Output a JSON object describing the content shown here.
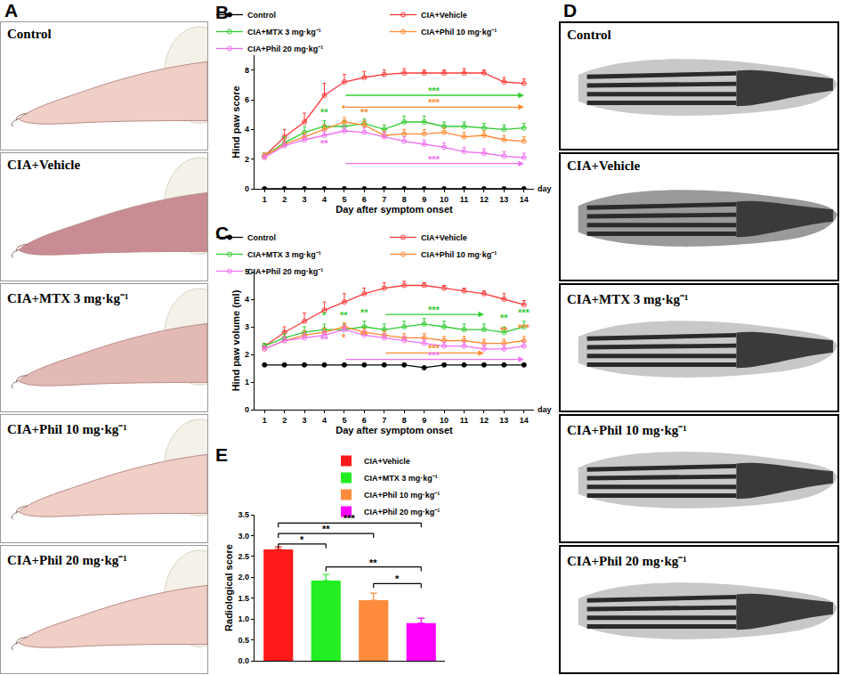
{
  "photo_panels": [
    {
      "panel": "A",
      "captions": [
        "Control",
        "CIA+Vehicle",
        "CIA+MTX 3 mg·kg⁻¹",
        "CIA+Phil 10 mg·kg⁻¹",
        "CIA+Phil 20 mg·kg⁻¹"
      ]
    },
    {
      "panel": "D",
      "captions": [
        "Control",
        "CIA+Vehicle",
        "CIA+MTX 3 mg·kg⁻¹",
        "CIA+Phil 10 mg·kg⁻¹",
        "CIA+Phil 20 mg·kg⁻¹"
      ]
    }
  ],
  "chart_data": [
    {
      "panel": "B",
      "type": "line",
      "xlabel": "Day after symptom onset",
      "axis_end_label": "day",
      "ylabel": "Hind paw score",
      "x": [
        1,
        2,
        3,
        4,
        5,
        6,
        7,
        8,
        9,
        10,
        11,
        12,
        13,
        14
      ],
      "xlim": [
        0.5,
        14.5
      ],
      "xticks": [
        1,
        2,
        3,
        4,
        5,
        6,
        7,
        8,
        9,
        10,
        11,
        12,
        13,
        14
      ],
      "ylim": [
        0,
        9
      ],
      "yticks": [
        0,
        2,
        4,
        6,
        8
      ],
      "grid": false,
      "legend": "top",
      "series": [
        {
          "name": "Control",
          "color": "#000000",
          "marker": "circle",
          "values": [
            0,
            0,
            0,
            0,
            0,
            0,
            0,
            0,
            0,
            0,
            0,
            0,
            0,
            0
          ]
        },
        {
          "name": "CIA+Vehicle",
          "color": "#ff3b3b",
          "marker": "circle-open",
          "values": [
            2.2,
            3.5,
            4.5,
            6.3,
            7.2,
            7.5,
            7.7,
            7.8,
            7.8,
            7.8,
            7.8,
            7.8,
            7.2,
            7.1
          ],
          "errors": [
            0.2,
            0.5,
            0.6,
            0.8,
            0.5,
            0.4,
            0.3,
            0.3,
            0.2,
            0.2,
            0.3,
            0.2,
            0.3,
            0.3
          ]
        },
        {
          "name": "CIA+MTX 3 mg·kg⁻¹",
          "color": "#33cc33",
          "marker": "circle-open",
          "values": [
            2.2,
            3.1,
            3.8,
            4.2,
            4.2,
            4.4,
            4.0,
            4.5,
            4.5,
            4.2,
            4.2,
            4.1,
            4.0,
            4.1
          ],
          "errors": [
            0.2,
            0.4,
            0.4,
            0.4,
            0.4,
            0.3,
            0.3,
            0.4,
            0.4,
            0.3,
            0.3,
            0.3,
            0.3,
            0.3
          ]
        },
        {
          "name": "CIA+Phil 10 mg·kg⁻¹",
          "color": "#ff8a33",
          "marker": "circle-open",
          "values": [
            2.2,
            3.0,
            3.5,
            4.0,
            4.5,
            4.3,
            3.6,
            3.7,
            3.7,
            3.8,
            3.5,
            3.6,
            3.3,
            3.2
          ],
          "errors": [
            0.2,
            0.3,
            0.3,
            0.3,
            0.3,
            0.3,
            0.3,
            0.3,
            0.3,
            0.3,
            0.3,
            0.3,
            0.3,
            0.3
          ]
        },
        {
          "name": "CIA+Phil 20 mg·kg⁻¹",
          "color": "#f070f0",
          "marker": "circle-open",
          "values": [
            2.1,
            2.9,
            3.3,
            3.6,
            3.9,
            3.8,
            3.5,
            3.2,
            3.0,
            2.8,
            2.5,
            2.4,
            2.2,
            2.1
          ],
          "errors": [
            0.2,
            0.3,
            0.3,
            0.3,
            0.3,
            0.3,
            0.3,
            0.3,
            0.3,
            0.3,
            0.3,
            0.3,
            0.3,
            0.3
          ]
        }
      ],
      "annotations": [
        {
          "x": 4,
          "y": 4.7,
          "text": "**",
          "color": "#33cc33"
        },
        {
          "x": 5,
          "y": 4.9,
          "text": "*",
          "color": "#ff8a33"
        },
        {
          "x": 6,
          "y": 4.7,
          "text": "**",
          "color": "#ff8a33"
        },
        {
          "x": 4,
          "y": 2.6,
          "text": "**",
          "color": "#f070f0"
        }
      ],
      "arrows": [
        {
          "from": 5,
          "to": 14,
          "y": 6.3,
          "text": "***",
          "color": "#33cc33"
        },
        {
          "from": 5,
          "to": 14,
          "y": 5.5,
          "text": "***",
          "color": "#ff8a33"
        },
        {
          "from": 5,
          "to": 14,
          "y": 1.7,
          "text": "***",
          "color": "#f070f0"
        }
      ]
    },
    {
      "panel": "C",
      "type": "line",
      "xlabel": "Day after symptom onset",
      "axis_end_label": "day",
      "ylabel": "Hind paw volume (ml)",
      "x": [
        1,
        2,
        3,
        4,
        5,
        6,
        7,
        8,
        9,
        10,
        11,
        12,
        13,
        14
      ],
      "xlim": [
        0.5,
        14.5
      ],
      "xticks": [
        1,
        2,
        3,
        4,
        5,
        6,
        7,
        8,
        9,
        10,
        11,
        12,
        13,
        14
      ],
      "ylim": [
        0,
        5
      ],
      "yticks": [
        0,
        1,
        2,
        3,
        4,
        5
      ],
      "grid": false,
      "legend": "top",
      "series": [
        {
          "name": "Control",
          "color": "#000000",
          "marker": "circle",
          "values": [
            1.62,
            1.62,
            1.62,
            1.62,
            1.62,
            1.62,
            1.62,
            1.62,
            1.52,
            1.62,
            1.62,
            1.62,
            1.62,
            1.62
          ],
          "errors": [
            0.03,
            0.03,
            0.03,
            0.03,
            0.03,
            0.03,
            0.03,
            0.03,
            0.03,
            0.03,
            0.03,
            0.03,
            0.03,
            0.03
          ]
        },
        {
          "name": "CIA+Vehicle",
          "color": "#ff3b3b",
          "marker": "circle-open",
          "values": [
            2.3,
            2.8,
            3.2,
            3.6,
            3.9,
            4.2,
            4.4,
            4.5,
            4.5,
            4.4,
            4.3,
            4.2,
            4.0,
            3.8
          ],
          "errors": [
            0.1,
            0.2,
            0.3,
            0.3,
            0.3,
            0.2,
            0.2,
            0.15,
            0.1,
            0.1,
            0.1,
            0.1,
            0.2,
            0.15
          ]
        },
        {
          "name": "CIA+MTX 3 mg·kg⁻¹",
          "color": "#33cc33",
          "marker": "circle-open",
          "values": [
            2.3,
            2.6,
            2.8,
            2.9,
            2.9,
            3.0,
            2.9,
            3.0,
            3.1,
            3.0,
            2.9,
            2.9,
            2.8,
            3.0
          ],
          "errors": [
            0.1,
            0.15,
            0.2,
            0.2,
            0.2,
            0.2,
            0.2,
            0.2,
            0.2,
            0.2,
            0.2,
            0.2,
            0.2,
            0.2
          ]
        },
        {
          "name": "CIA+Phil 10 mg·kg⁻¹",
          "color": "#ff8a33",
          "marker": "circle-open",
          "values": [
            2.2,
            2.5,
            2.7,
            2.8,
            3.0,
            2.8,
            2.7,
            2.6,
            2.6,
            2.5,
            2.5,
            2.4,
            2.4,
            2.5
          ],
          "errors": [
            0.1,
            0.15,
            0.15,
            0.15,
            0.15,
            0.15,
            0.15,
            0.15,
            0.15,
            0.15,
            0.15,
            0.15,
            0.15,
            0.15
          ]
        },
        {
          "name": "CIA+Phil 20 mg·kg⁻¹",
          "color": "#f070f0",
          "marker": "circle-open",
          "values": [
            2.2,
            2.5,
            2.6,
            2.7,
            2.9,
            2.7,
            2.6,
            2.5,
            2.4,
            2.3,
            2.3,
            2.2,
            2.2,
            2.3
          ],
          "errors": [
            0.1,
            0.15,
            0.15,
            0.15,
            0.15,
            0.15,
            0.15,
            0.15,
            0.15,
            0.15,
            0.15,
            0.15,
            0.15,
            0.15
          ]
        }
      ],
      "annotations": [
        {
          "x": 4,
          "y": 3.15,
          "text": "*",
          "color": "#33cc33"
        },
        {
          "x": 5,
          "y": 3.15,
          "text": "**",
          "color": "#33cc33"
        },
        {
          "x": 6,
          "y": 3.25,
          "text": "**",
          "color": "#33cc33"
        },
        {
          "x": 13,
          "y": 3.05,
          "text": "**",
          "color": "#33cc33"
        },
        {
          "x": 14,
          "y": 3.25,
          "text": "***",
          "color": "#33cc33"
        },
        {
          "x": 5,
          "y": 2.35,
          "text": "*",
          "color": "#ff8a33"
        },
        {
          "x": 6,
          "y": 2.45,
          "text": "**",
          "color": "#ff8a33"
        },
        {
          "x": 13,
          "y": 2.6,
          "text": "**",
          "color": "#ff8a33"
        },
        {
          "x": 14,
          "y": 2.7,
          "text": "***",
          "color": "#ff8a33"
        },
        {
          "x": 4,
          "y": 2.3,
          "text": "**",
          "color": "#f070f0"
        }
      ],
      "arrows": [
        {
          "from": 7,
          "to": 12,
          "y": 3.45,
          "text": "***",
          "color": "#33cc33"
        },
        {
          "from": 7,
          "to": 12,
          "y": 2.05,
          "text": "***",
          "color": "#ff8a33"
        },
        {
          "from": 5,
          "to": 14,
          "y": 1.82,
          "text": "***",
          "color": "#f070f0"
        }
      ]
    },
    {
      "panel": "E",
      "type": "bar",
      "ylabel": "Radiological score",
      "categories": [
        "CIA+Vehicle",
        "CIA+MTX 3 mg·kg⁻¹",
        "CIA+Phil 10 mg·kg⁻¹",
        "CIA+Phil 20 mg·kg⁻¹"
      ],
      "values": [
        2.67,
        1.92,
        1.45,
        0.9
      ],
      "errors": [
        0.06,
        0.15,
        0.17,
        0.12
      ],
      "colors": [
        "#ff1a1a",
        "#22ee22",
        "#ff8c3c",
        "#ff00ff"
      ],
      "ylim": [
        0,
        3.5
      ],
      "yticks": [
        {
          "value": 0,
          "label": "0.0"
        },
        {
          "value": 0.5,
          "label": "0.5"
        },
        {
          "value": 1,
          "label": "1.0"
        },
        {
          "value": 1.5,
          "label": "1.5"
        },
        {
          "value": 2,
          "label": "2.0"
        },
        {
          "value": 2.5,
          "label": "2.5"
        },
        {
          "value": 3,
          "label": "3.0"
        },
        {
          "value": 3.5,
          "label": "3.5"
        }
      ],
      "tick_labels": "y",
      "grid": false,
      "legend": "top right",
      "brackets": [
        {
          "from": "CIA+Vehicle",
          "to": "CIA+MTX 3 mg·kg⁻¹",
          "y": 2.8,
          "text": "*"
        },
        {
          "from": "CIA+Vehicle",
          "to": "CIA+Phil 10 mg·kg⁻¹",
          "y": 3.05,
          "text": "**"
        },
        {
          "from": "CIA+Vehicle",
          "to": "CIA+Phil 20 mg·kg⁻¹",
          "y": 3.3,
          "text": "***"
        },
        {
          "from": "CIA+MTX 3 mg·kg⁻¹",
          "to": "CIA+Phil 20 mg·kg⁻¹",
          "y": 2.25,
          "text": "**"
        },
        {
          "from": "CIA+Phil 10 mg·kg⁻¹",
          "to": "CIA+Phil 20 mg·kg⁻¹",
          "y": 1.85,
          "text": "*"
        }
      ]
    }
  ]
}
